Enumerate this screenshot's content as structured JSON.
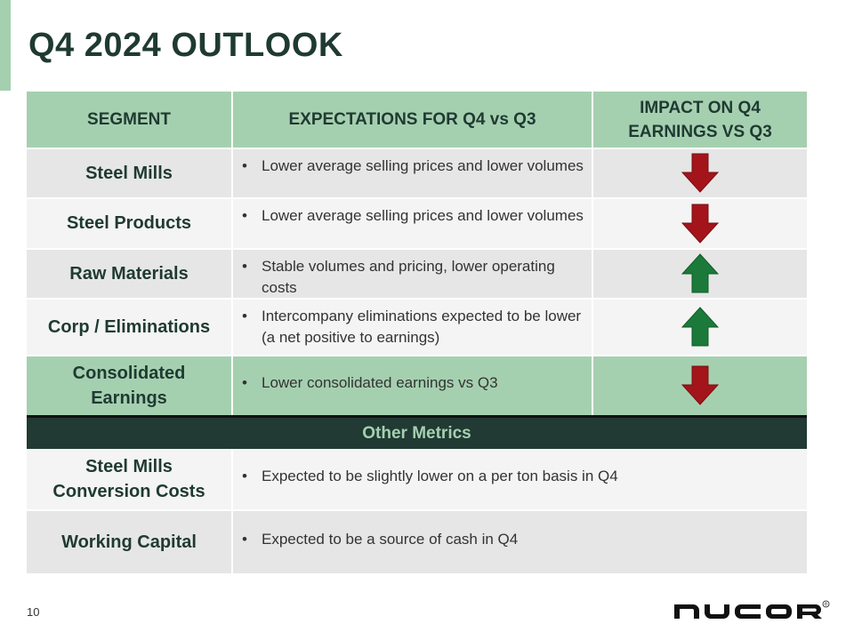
{
  "title": "Q4 2024 OUTLOOK",
  "table": {
    "headers": [
      "SEGMENT",
      "EXPECTATIONS FOR Q4 vs Q3",
      "IMPACT ON Q4 EARNINGS VS Q3"
    ],
    "rows": [
      {
        "segment": "Steel Mills",
        "expectation": "Lower average selling prices and lower volumes",
        "impact": "down"
      },
      {
        "segment": "Steel Products",
        "expectation": "Lower average selling prices and lower volumes",
        "impact": "down"
      },
      {
        "segment": "Raw Materials",
        "expectation": "Stable volumes and pricing, lower operating costs",
        "impact": "up"
      },
      {
        "segment": "Corp / Eliminations",
        "expectation": "Intercompany eliminations expected to be lower (a net positive to earnings)",
        "impact": "up"
      },
      {
        "segment": "Consolidated Earnings",
        "expectation": "Lower consolidated earnings vs Q3",
        "impact": "down"
      }
    ]
  },
  "other_metrics": {
    "heading": "Other Metrics",
    "rows": [
      {
        "metric": "Steel Mills Conversion Costs",
        "expectation": "Expected to be slightly lower on a per ton basis in Q4"
      },
      {
        "metric": "Working Capital",
        "expectation": "Expected to be a source of cash in Q4"
      }
    ]
  },
  "footer": {
    "page_number": "10",
    "logo_text": "NUCOR",
    "logo_mark": "®"
  },
  "colors": {
    "header_green": "#a5d0b0",
    "dark_green": "#213a33",
    "arrow_red": "#a3151b",
    "arrow_green": "#1b7a3a"
  },
  "icons": {
    "down": "arrow-down-icon",
    "up": "arrow-up-icon"
  }
}
